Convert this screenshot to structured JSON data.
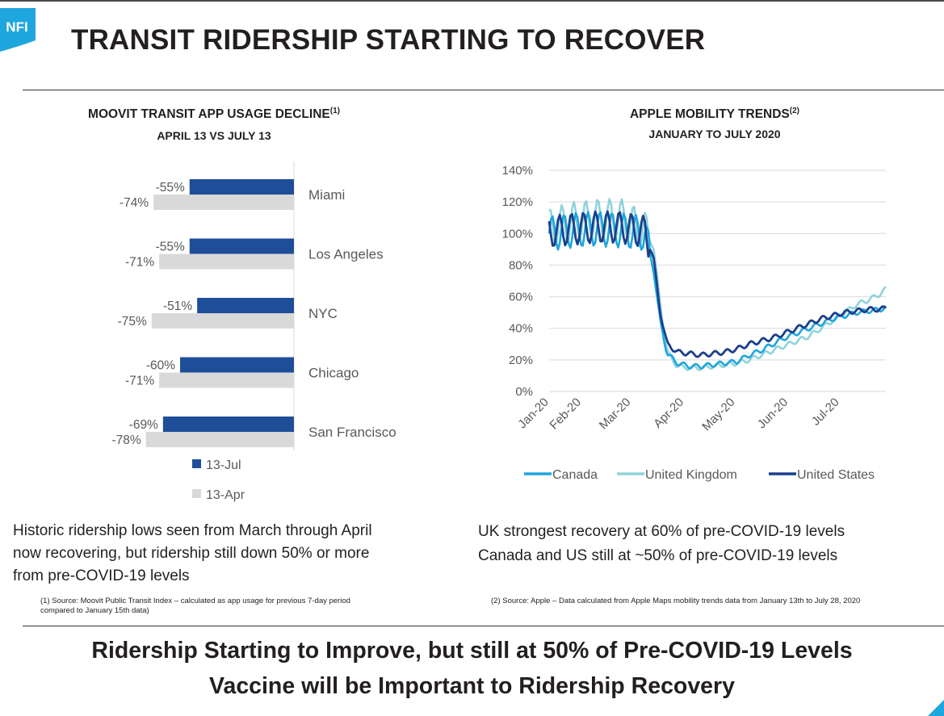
{
  "header": {
    "logo_text": "NFI",
    "title": "TRANSIT RIDERSHIP STARTING TO RECOVER"
  },
  "left": {
    "heading": "MOOVIT TRANSIT APP USAGE DECLINE",
    "heading_note": "(1)",
    "subheading": "APRIL 13 VS JULY 13",
    "body_lines": [
      "Historic ridership lows seen from March through April",
      "now recovering, but ridership still down 50% or more",
      "from pre-COVID-19 levels"
    ],
    "footnote_lines": [
      "(1) Source: Moovit Public Transit Index – calculated as app usage for previous 7-day period",
      "compared to January 15th data)"
    ]
  },
  "right": {
    "heading": "APPLE MOBILITY TRENDS",
    "heading_note": "(2)",
    "subheading": "JANUARY TO JULY 2020",
    "body_lines": [
      "UK strongest recovery at 60% of pre-COVID-19 levels",
      "Canada and US still at ~50% of pre-COVID-19 levels"
    ],
    "footnote": "(2) Source: Apple – Data calculated from Apple Maps mobility trends data from January 13th to July 28, 2020"
  },
  "bottom": {
    "line1": "Ridership Starting to Improve, but still at 50% of Pre-COVID-19 Levels",
    "line2": "Vaccine will be Important to Ridership Recovery"
  },
  "colors": {
    "jul": "#1f4e99",
    "apr": "#d9d9d9",
    "canada": "#1ea6de",
    "uk": "#8fd3dc",
    "us": "#1b3f8b",
    "logo": "#1ea6de"
  },
  "chart_data": [
    {
      "type": "bar",
      "orientation": "horizontal",
      "categories": [
        "Miami",
        "Los Angeles",
        "NYC",
        "Chicago",
        "San Francisco"
      ],
      "series": [
        {
          "name": "13-Jul",
          "values": [
            -55,
            -55,
            -51,
            -60,
            -69
          ],
          "labels": [
            "-55%",
            "-55%",
            "-51%",
            "-60%",
            "-69%"
          ]
        },
        {
          "name": "13-Apr",
          "values": [
            -74,
            -71,
            -75,
            -71,
            -78
          ],
          "labels": [
            "-74%",
            "-71%",
            "-75%",
            "-71%",
            "-78%"
          ]
        }
      ],
      "xlim": [
        -100,
        0
      ],
      "legend": "bottom",
      "grid": false
    },
    {
      "type": "line",
      "x_labels": [
        "Jan-20",
        "Feb-20",
        "Mar-20",
        "Apr-20",
        "May-20",
        "Jun-20",
        "Jul-20"
      ],
      "y_ticks": [
        "0%",
        "20%",
        "40%",
        "60%",
        "80%",
        "100%",
        "120%",
        "140%"
      ],
      "ylim": [
        0,
        140
      ],
      "grid": true,
      "legend": "bottom",
      "x_range": [
        "2020-01-13",
        "2020-07-28"
      ],
      "series": [
        {
          "name": "Canada",
          "x": [
            "2020-01-13",
            "2020-01-27",
            "2020-02-10",
            "2020-02-24",
            "2020-03-09",
            "2020-03-14",
            "2020-03-18",
            "2020-03-22",
            "2020-03-28",
            "2020-04-04",
            "2020-04-11",
            "2020-04-18",
            "2020-04-25",
            "2020-05-02",
            "2020-05-09",
            "2020-05-16",
            "2020-05-23",
            "2020-05-30",
            "2020-06-06",
            "2020-06-13",
            "2020-06-20",
            "2020-06-27",
            "2020-07-04",
            "2020-07-11",
            "2020-07-18",
            "2020-07-25",
            "2020-07-28"
          ],
          "values": [
            100,
            102,
            103,
            102,
            100,
            78,
            44,
            24,
            18,
            16,
            16,
            17,
            18,
            19,
            23,
            26,
            30,
            34,
            37,
            40,
            43,
            46,
            48,
            50,
            51,
            52,
            53
          ]
        },
        {
          "name": "United Kingdom",
          "x": [
            "2020-01-13",
            "2020-01-27",
            "2020-02-10",
            "2020-02-24",
            "2020-03-09",
            "2020-03-14",
            "2020-03-18",
            "2020-03-22",
            "2020-03-28",
            "2020-04-04",
            "2020-04-11",
            "2020-04-18",
            "2020-04-25",
            "2020-05-02",
            "2020-05-09",
            "2020-05-16",
            "2020-05-23",
            "2020-05-30",
            "2020-06-06",
            "2020-06-13",
            "2020-06-20",
            "2020-06-27",
            "2020-07-04",
            "2020-07-11",
            "2020-07-18",
            "2020-07-25",
            "2020-07-28"
          ],
          "values": [
            104,
            108,
            110,
            110,
            102,
            92,
            55,
            25,
            16,
            15,
            15,
            16,
            17,
            18,
            20,
            23,
            26,
            29,
            32,
            35,
            40,
            45,
            50,
            55,
            58,
            62,
            65
          ]
        },
        {
          "name": "United States",
          "x": [
            "2020-01-13",
            "2020-01-27",
            "2020-02-10",
            "2020-02-24",
            "2020-03-09",
            "2020-03-14",
            "2020-03-18",
            "2020-03-22",
            "2020-03-28",
            "2020-04-04",
            "2020-04-11",
            "2020-04-18",
            "2020-04-25",
            "2020-05-02",
            "2020-05-09",
            "2020-05-16",
            "2020-05-23",
            "2020-05-30",
            "2020-06-06",
            "2020-06-13",
            "2020-06-20",
            "2020-06-27",
            "2020-07-04",
            "2020-07-11",
            "2020-07-18",
            "2020-07-25",
            "2020-07-28"
          ],
          "values": [
            101,
            103,
            104,
            104,
            101,
            85,
            50,
            30,
            25,
            24,
            23,
            24,
            25,
            27,
            30,
            32,
            34,
            37,
            40,
            43,
            46,
            48,
            50,
            51,
            52,
            52,
            53
          ]
        }
      ]
    }
  ]
}
